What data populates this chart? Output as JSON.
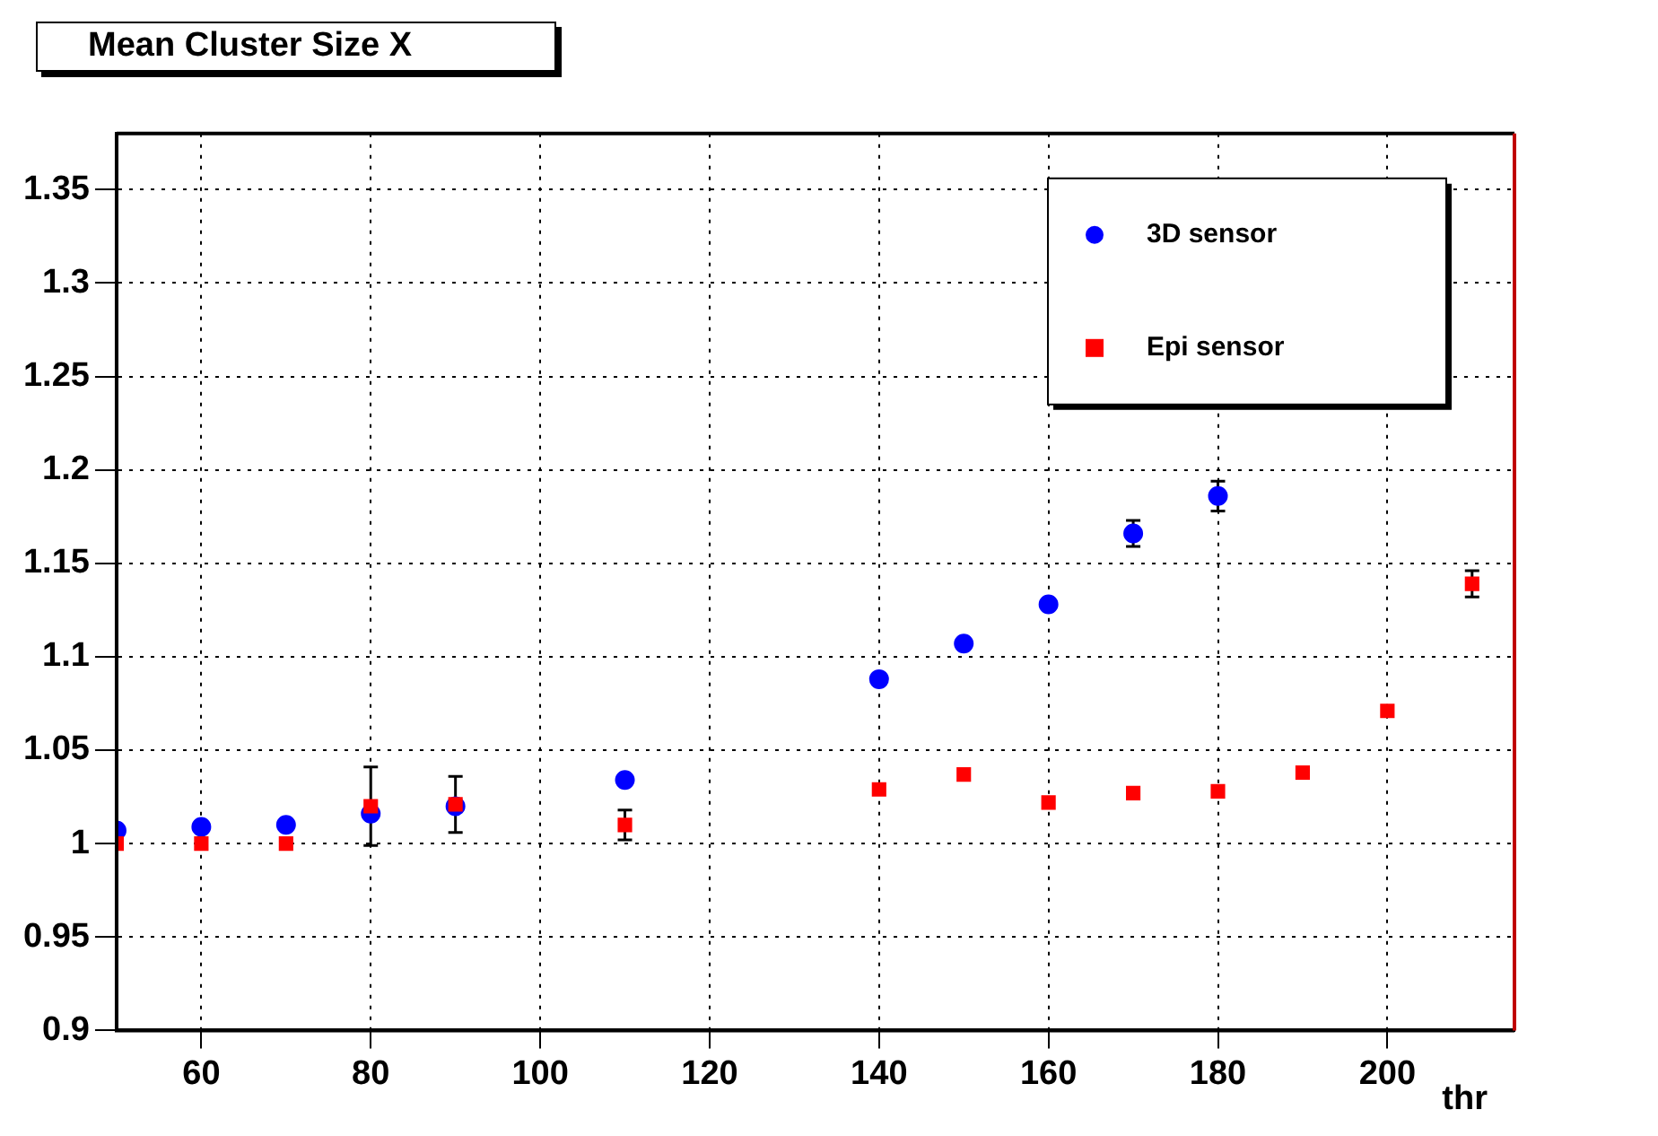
{
  "chart_data": {
    "type": "scatter",
    "title": "Mean Cluster Size X",
    "xlabel": "thr",
    "xlim": [
      50,
      215
    ],
    "xticks": [
      60,
      80,
      100,
      120,
      140,
      160,
      180,
      200
    ],
    "ylim": [
      0.9,
      1.38
    ],
    "yticks": [
      0.9,
      0.95,
      1,
      1.05,
      1.1,
      1.15,
      1.2,
      1.25,
      1.3,
      1.35
    ],
    "grid": true,
    "legend": "top right",
    "series": [
      {
        "name": "3D sensor",
        "color": "#0000ff",
        "marker": "circle",
        "x": [
          50,
          60,
          70,
          80,
          90,
          110,
          140,
          150,
          160,
          170,
          180
        ],
        "values": [
          1.007,
          1.009,
          1.01,
          1.016,
          1.02,
          1.034,
          1.088,
          1.107,
          1.128,
          1.166,
          1.186
        ],
        "errors": [
          null,
          null,
          null,
          null,
          null,
          null,
          null,
          null,
          null,
          0.007,
          0.008
        ]
      },
      {
        "name": "Epi sensor",
        "color": "#ff0000",
        "marker": "square",
        "x": [
          50,
          60,
          70,
          80,
          90,
          110,
          140,
          150,
          160,
          170,
          180,
          190,
          200,
          210
        ],
        "values": [
          1.0,
          1.0,
          1.0,
          1.02,
          1.021,
          1.01,
          1.029,
          1.037,
          1.022,
          1.027,
          1.028,
          1.038,
          1.071,
          1.139
        ],
        "errors": [
          null,
          null,
          null,
          0.021,
          0.015,
          0.008,
          null,
          null,
          null,
          null,
          null,
          null,
          null,
          0.007
        ]
      }
    ]
  }
}
